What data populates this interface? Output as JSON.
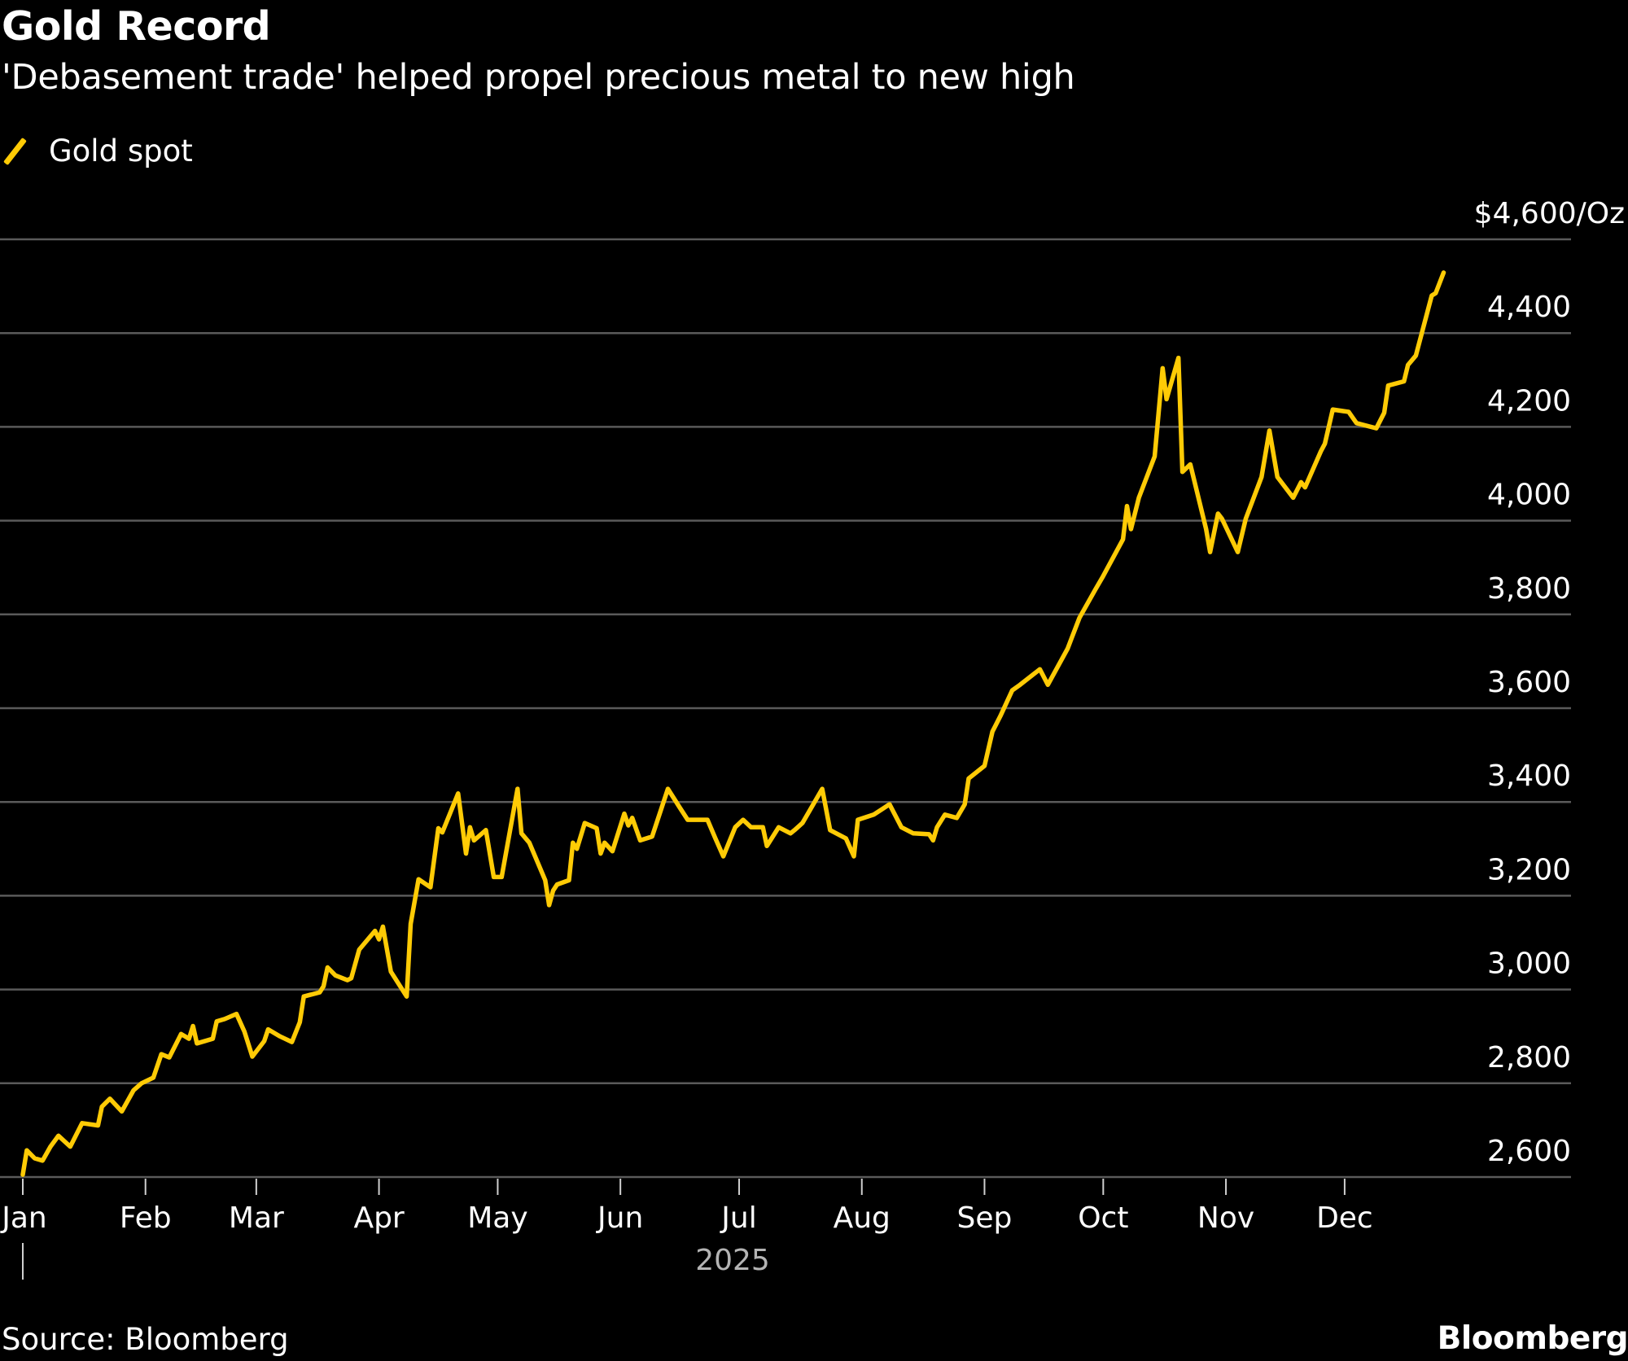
{
  "header": {
    "title": "Gold Record",
    "subtitle": "'Debasement trade' helped propel precious metal to new high"
  },
  "footer": {
    "source": "Source: Bloomberg",
    "brand": "Bloomberg"
  },
  "colors": {
    "background": "#000000",
    "series": "#FFCB05",
    "grid": "#5a5a5a",
    "text": "#ffffff",
    "year_label": "#b4b4b4"
  },
  "chart_data": {
    "type": "line",
    "title": "Gold Record",
    "subtitle": "'Debasement trade' helped propel precious metal to new high",
    "legend": {
      "placement": "top-left",
      "entries": [
        "Gold spot"
      ]
    },
    "grid": true,
    "ylim": [
      2600,
      4600
    ],
    "y_unit_label": "$4,600/Oz",
    "y_ticks": [
      {
        "value": 2600,
        "label": "2,600"
      },
      {
        "value": 2800,
        "label": "2,800"
      },
      {
        "value": 3000,
        "label": "3,000"
      },
      {
        "value": 3200,
        "label": "3,200"
      },
      {
        "value": 3400,
        "label": "3,400"
      },
      {
        "value": 3600,
        "label": "3,600"
      },
      {
        "value": 3800,
        "label": "3,800"
      },
      {
        "value": 4000,
        "label": "4,000"
      },
      {
        "value": 4200,
        "label": "4,200"
      },
      {
        "value": 4400,
        "label": "4,400"
      },
      {
        "value": 4600,
        "label": "$4,600/Oz"
      }
    ],
    "x_ticks": [
      {
        "date": "2025-01-01",
        "label": "Jan"
      },
      {
        "date": "2025-02-01",
        "label": "Feb"
      },
      {
        "date": "2025-03-01",
        "label": "Mar"
      },
      {
        "date": "2025-04-01",
        "label": "Apr"
      },
      {
        "date": "2025-05-01",
        "label": "May"
      },
      {
        "date": "2025-06-01",
        "label": "Jun"
      },
      {
        "date": "2025-07-01",
        "label": "Jul"
      },
      {
        "date": "2025-08-01",
        "label": "Aug"
      },
      {
        "date": "2025-09-01",
        "label": "Sep"
      },
      {
        "date": "2025-10-01",
        "label": "Oct"
      },
      {
        "date": "2025-11-01",
        "label": "Nov"
      },
      {
        "date": "2025-12-01",
        "label": "Dec"
      }
    ],
    "x_year_label": "2025",
    "series": [
      {
        "name": "Gold spot",
        "color": "#FFCB05",
        "points": [
          [
            "2025-01-01",
            2605
          ],
          [
            "2025-01-02",
            2657
          ],
          [
            "2025-01-04",
            2640
          ],
          [
            "2025-01-06",
            2635
          ],
          [
            "2025-01-08",
            2665
          ],
          [
            "2025-01-10",
            2688
          ],
          [
            "2025-01-13",
            2665
          ],
          [
            "2025-01-16",
            2715
          ],
          [
            "2025-01-20",
            2710
          ],
          [
            "2025-01-21",
            2750
          ],
          [
            "2025-01-23",
            2767
          ],
          [
            "2025-01-26",
            2740
          ],
          [
            "2025-01-29",
            2785
          ],
          [
            "2025-01-31",
            2800
          ],
          [
            "2025-02-03",
            2812
          ],
          [
            "2025-02-05",
            2862
          ],
          [
            "2025-02-07",
            2855
          ],
          [
            "2025-02-10",
            2905
          ],
          [
            "2025-02-12",
            2895
          ],
          [
            "2025-02-13",
            2922
          ],
          [
            "2025-02-14",
            2885
          ],
          [
            "2025-02-18",
            2895
          ],
          [
            "2025-02-19",
            2932
          ],
          [
            "2025-02-21",
            2937
          ],
          [
            "2025-02-24",
            2948
          ],
          [
            "2025-02-26",
            2910
          ],
          [
            "2025-02-28",
            2857
          ],
          [
            "2025-03-03",
            2890
          ],
          [
            "2025-03-04",
            2915
          ],
          [
            "2025-03-07",
            2900
          ],
          [
            "2025-03-10",
            2888
          ],
          [
            "2025-03-12",
            2930
          ],
          [
            "2025-03-13",
            2985
          ],
          [
            "2025-03-17",
            2994
          ],
          [
            "2025-03-18",
            3007
          ],
          [
            "2025-03-19",
            3047
          ],
          [
            "2025-03-21",
            3030
          ],
          [
            "2025-03-24",
            3020
          ],
          [
            "2025-03-25",
            3024
          ],
          [
            "2025-03-27",
            3085
          ],
          [
            "2025-03-31",
            3125
          ],
          [
            "2025-04-01",
            3107
          ],
          [
            "2025-04-02",
            3134
          ],
          [
            "2025-04-04",
            3038
          ],
          [
            "2025-04-08",
            2985
          ],
          [
            "2025-04-09",
            3140
          ],
          [
            "2025-04-11",
            3235
          ],
          [
            "2025-04-14",
            3218
          ],
          [
            "2025-04-16",
            3344
          ],
          [
            "2025-04-17",
            3335
          ],
          [
            "2025-04-21",
            3418
          ],
          [
            "2025-04-23",
            3290
          ],
          [
            "2025-04-24",
            3346
          ],
          [
            "2025-04-25",
            3318
          ],
          [
            "2025-04-28",
            3340
          ],
          [
            "2025-04-30",
            3240
          ],
          [
            "2025-05-02",
            3240
          ],
          [
            "2025-05-06",
            3428
          ],
          [
            "2025-05-07",
            3333
          ],
          [
            "2025-05-09",
            3313
          ],
          [
            "2025-05-13",
            3233
          ],
          [
            "2025-05-14",
            3180
          ],
          [
            "2025-05-15",
            3211
          ],
          [
            "2025-05-16",
            3224
          ],
          [
            "2025-05-19",
            3233
          ],
          [
            "2025-05-20",
            3313
          ],
          [
            "2025-05-21",
            3300
          ],
          [
            "2025-05-23",
            3355
          ],
          [
            "2025-05-26",
            3344
          ],
          [
            "2025-05-27",
            3290
          ],
          [
            "2025-05-28",
            3313
          ],
          [
            "2025-05-30",
            3295
          ],
          [
            "2025-06-02",
            3375
          ],
          [
            "2025-06-03",
            3350
          ],
          [
            "2025-06-04",
            3366
          ],
          [
            "2025-06-06",
            3318
          ],
          [
            "2025-06-09",
            3326
          ],
          [
            "2025-06-13",
            3428
          ],
          [
            "2025-06-16",
            3388
          ],
          [
            "2025-06-18",
            3362
          ],
          [
            "2025-06-23",
            3362
          ],
          [
            "2025-06-25",
            3322
          ],
          [
            "2025-06-27",
            3284
          ],
          [
            "2025-06-30",
            3346
          ],
          [
            "2025-07-02",
            3362
          ],
          [
            "2025-07-04",
            3346
          ],
          [
            "2025-07-07",
            3346
          ],
          [
            "2025-07-08",
            3306
          ],
          [
            "2025-07-11",
            3346
          ],
          [
            "2025-07-14",
            3333
          ],
          [
            "2025-07-15",
            3340
          ],
          [
            "2025-07-17",
            3355
          ],
          [
            "2025-07-22",
            3428
          ],
          [
            "2025-07-24",
            3340
          ],
          [
            "2025-07-28",
            3322
          ],
          [
            "2025-07-30",
            3284
          ],
          [
            "2025-07-31",
            3362
          ],
          [
            "2025-08-04",
            3373
          ],
          [
            "2025-08-06",
            3384
          ],
          [
            "2025-08-08",
            3395
          ],
          [
            "2025-08-11",
            3346
          ],
          [
            "2025-08-14",
            3333
          ],
          [
            "2025-08-18",
            3331
          ],
          [
            "2025-08-19",
            3318
          ],
          [
            "2025-08-20",
            3346
          ],
          [
            "2025-08-22",
            3373
          ],
          [
            "2025-08-25",
            3366
          ],
          [
            "2025-08-27",
            3395
          ],
          [
            "2025-08-28",
            3450
          ],
          [
            "2025-09-01",
            3477
          ],
          [
            "2025-09-03",
            3550
          ],
          [
            "2025-09-05",
            3583
          ],
          [
            "2025-09-08",
            3638
          ],
          [
            "2025-09-10",
            3650
          ],
          [
            "2025-09-15",
            3683
          ],
          [
            "2025-09-17",
            3650
          ],
          [
            "2025-09-22",
            3727
          ],
          [
            "2025-09-23",
            3749
          ],
          [
            "2025-09-25",
            3793
          ],
          [
            "2025-09-29",
            3853
          ],
          [
            "2025-10-01",
            3882
          ],
          [
            "2025-10-06",
            3960
          ],
          [
            "2025-10-07",
            4031
          ],
          [
            "2025-10-08",
            3982
          ],
          [
            "2025-10-10",
            4049
          ],
          [
            "2025-10-14",
            4137
          ],
          [
            "2025-10-16",
            4325
          ],
          [
            "2025-10-17",
            4259
          ],
          [
            "2025-10-20",
            4347
          ],
          [
            "2025-10-21",
            4104
          ],
          [
            "2025-10-23",
            4120
          ],
          [
            "2025-10-27",
            3982
          ],
          [
            "2025-10-28",
            3933
          ],
          [
            "2025-10-30",
            4015
          ],
          [
            "2025-10-31",
            4004
          ],
          [
            "2025-11-04",
            3933
          ],
          [
            "2025-11-06",
            4004
          ],
          [
            "2025-11-10",
            4093
          ],
          [
            "2025-11-12",
            4192
          ],
          [
            "2025-11-14",
            4093
          ],
          [
            "2025-11-18",
            4049
          ],
          [
            "2025-11-20",
            4082
          ],
          [
            "2025-11-21",
            4071
          ],
          [
            "2025-11-25",
            4148
          ],
          [
            "2025-11-26",
            4164
          ],
          [
            "2025-11-28",
            4237
          ],
          [
            "2025-12-02",
            4232
          ],
          [
            "2025-12-04",
            4208
          ],
          [
            "2025-12-09",
            4197
          ],
          [
            "2025-12-11",
            4230
          ],
          [
            "2025-12-12",
            4288
          ],
          [
            "2025-12-16",
            4297
          ],
          [
            "2025-12-17",
            4332
          ],
          [
            "2025-12-19",
            4352
          ],
          [
            "2025-12-23",
            4480
          ],
          [
            "2025-12-24",
            4485
          ],
          [
            "2025-12-26",
            4529
          ]
        ]
      }
    ]
  }
}
